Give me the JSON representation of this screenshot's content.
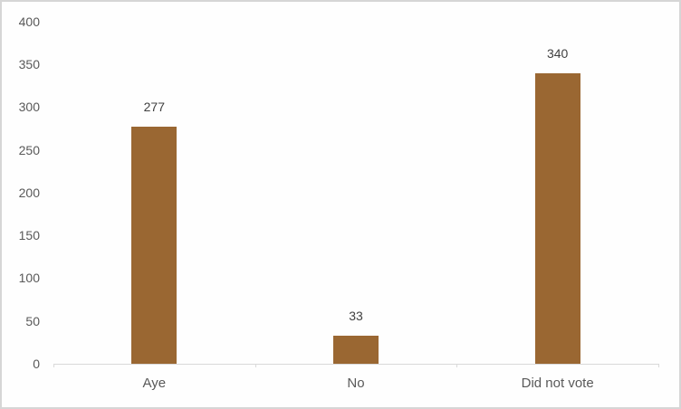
{
  "chart_data": {
    "type": "bar",
    "categories": [
      "Aye",
      "No",
      "Did not vote"
    ],
    "values": [
      277,
      33,
      340
    ],
    "data_labels": [
      "277",
      "33",
      "340"
    ],
    "title": "",
    "xlabel": "",
    "ylabel": "",
    "ylim": [
      0,
      400
    ],
    "ytick_step": 50,
    "yticks": [
      0,
      50,
      100,
      150,
      200,
      250,
      300,
      350,
      400
    ],
    "grid": false,
    "legend": "none",
    "colors": {
      "bar_fill": "#9A6732",
      "data_label_text": "#404040",
      "axis_tick_text": "#595959",
      "category_text": "#595959",
      "axis_line": "#D9D9D9",
      "background": "#FEFEFE",
      "frame_border": "#D6D6D6"
    }
  }
}
